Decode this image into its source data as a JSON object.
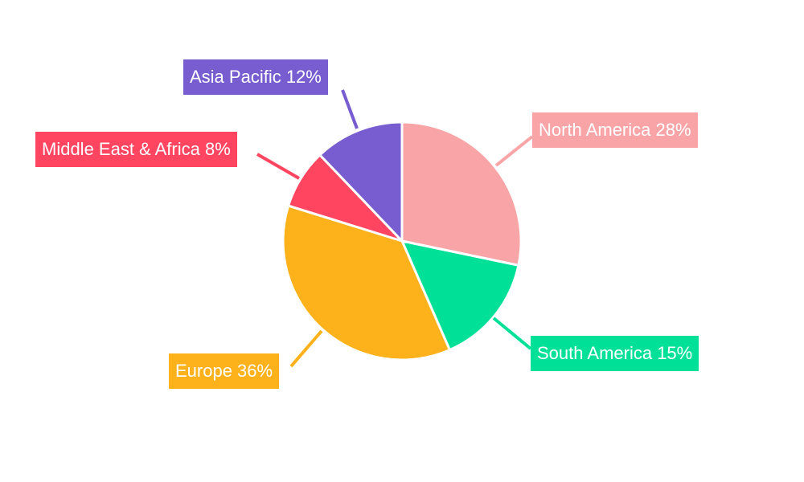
{
  "chart_data": {
    "type": "pie",
    "title": "",
    "start": "top",
    "direction": "clockwise",
    "slices": [
      {
        "label": "North America",
        "value": 28,
        "text": "North America 28%",
        "color": "#F9A5A8"
      },
      {
        "label": "South America",
        "value": 15,
        "text": "South America 15%",
        "color": "#00E096"
      },
      {
        "label": "Europe",
        "value": 36,
        "text": "Europe 36%",
        "color": "#FDB11A"
      },
      {
        "label": "Middle East & Africa",
        "value": 8,
        "text": "Middle East & Africa 8%",
        "color": "#FF4560"
      },
      {
        "label": "Asia Pacific",
        "value": 12,
        "text": "Asia Pacific 12%",
        "color": "#775DD0"
      }
    ]
  }
}
